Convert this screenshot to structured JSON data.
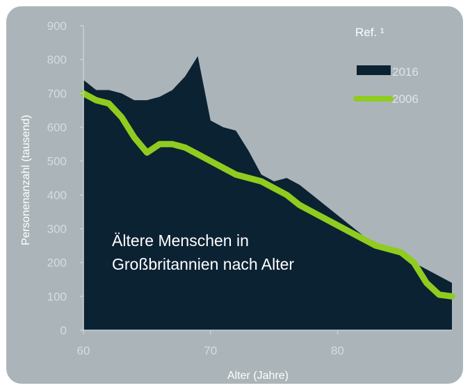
{
  "chart_data": {
    "type": "area",
    "title": "Ältere Menschen in Großbritannien nach Alter",
    "xlabel": "Alter (Jahre)",
    "ylabel": "Personenanzahl (tausend)",
    "xlim": [
      60,
      89
    ],
    "ylim": [
      0,
      900
    ],
    "x_ticks": [
      "60",
      "70",
      "80"
    ],
    "y_ticks": [
      "0",
      "100",
      "200",
      "300",
      "400",
      "500",
      "600",
      "700",
      "800",
      "900"
    ],
    "reference": "Ref. ¹",
    "legend_position": "top-right",
    "grid": false,
    "series": [
      {
        "name": "2016",
        "style": "area",
        "color": "#0b2233",
        "x": [
          60,
          61,
          62,
          63,
          64,
          65,
          66,
          67,
          68,
          69,
          70,
          71,
          72,
          73,
          74,
          75,
          76,
          77,
          78,
          79,
          80,
          81,
          82,
          83,
          84,
          85,
          86,
          87,
          88,
          89
        ],
        "values": [
          740,
          710,
          710,
          700,
          680,
          680,
          690,
          710,
          750,
          810,
          620,
          600,
          590,
          530,
          460,
          440,
          450,
          430,
          400,
          370,
          340,
          310,
          280,
          260,
          240,
          220,
          200,
          180,
          160,
          140
        ]
      },
      {
        "name": "2006",
        "style": "line",
        "color": "#8fcc1f",
        "x": [
          60,
          61,
          62,
          63,
          64,
          65,
          66,
          67,
          68,
          69,
          70,
          71,
          72,
          73,
          74,
          75,
          76,
          77,
          78,
          79,
          80,
          81,
          82,
          83,
          84,
          85,
          86,
          87,
          88,
          89
        ],
        "values": [
          700,
          680,
          670,
          630,
          570,
          525,
          550,
          550,
          540,
          520,
          500,
          480,
          460,
          450,
          440,
          420,
          400,
          370,
          350,
          330,
          310,
          290,
          270,
          250,
          240,
          230,
          200,
          140,
          105,
          100
        ]
      }
    ]
  }
}
